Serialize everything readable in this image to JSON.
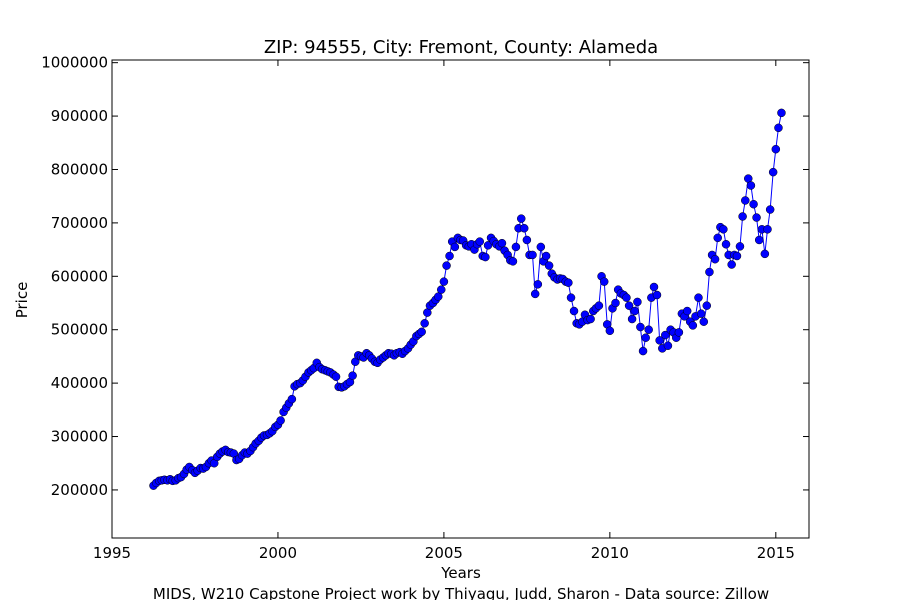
{
  "chart_data": {
    "type": "line",
    "title": "ZIP: 94555, City: Fremont, County: Alameda",
    "x_label": "Years",
    "y_label": "Price",
    "footer": "MIDS, W210 Capstone Project work by Thiyagu, Judd, Sharon  -  Data source: Zillow",
    "xlim": [
      1995,
      2016
    ],
    "ylim": [
      110000,
      1005000
    ],
    "xticks": [
      1995,
      2000,
      2005,
      2010,
      2015
    ],
    "yticks": [
      200000,
      300000,
      400000,
      500000,
      600000,
      700000,
      800000,
      900000,
      1000000
    ],
    "grid": false,
    "series": [
      {
        "color": "#0000ff",
        "x": [
          1996.25,
          1996.33,
          1996.42,
          1996.5,
          1996.58,
          1996.67,
          1996.75,
          1996.83,
          1996.92,
          1997,
          1997.08,
          1997.17,
          1997.25,
          1997.33,
          1997.42,
          1997.5,
          1997.58,
          1997.67,
          1997.75,
          1997.83,
          1997.92,
          1998,
          1998.08,
          1998.17,
          1998.25,
          1998.33,
          1998.42,
          1998.5,
          1998.58,
          1998.67,
          1998.75,
          1998.83,
          1998.92,
          1999,
          1999.08,
          1999.17,
          1999.25,
          1999.33,
          1999.42,
          1999.5,
          1999.58,
          1999.67,
          1999.75,
          1999.83,
          1999.92,
          2000,
          2000.08,
          2000.17,
          2000.25,
          2000.33,
          2000.42,
          2000.5,
          2000.58,
          2000.67,
          2000.75,
          2000.83,
          2000.92,
          2001,
          2001.08,
          2001.17,
          2001.25,
          2001.33,
          2001.42,
          2001.5,
          2001.58,
          2001.67,
          2001.75,
          2001.83,
          2001.92,
          2002,
          2002.08,
          2002.17,
          2002.25,
          2002.33,
          2002.42,
          2002.5,
          2002.58,
          2002.67,
          2002.75,
          2002.83,
          2002.92,
          2003,
          2003.08,
          2003.17,
          2003.25,
          2003.33,
          2003.42,
          2003.5,
          2003.58,
          2003.67,
          2003.75,
          2003.83,
          2003.92,
          2004,
          2004.08,
          2004.17,
          2004.25,
          2004.33,
          2004.42,
          2004.5,
          2004.58,
          2004.67,
          2004.75,
          2004.83,
          2004.92,
          2005,
          2005.08,
          2005.17,
          2005.25,
          2005.33,
          2005.42,
          2005.5,
          2005.58,
          2005.67,
          2005.75,
          2005.83,
          2005.92,
          2006,
          2006.08,
          2006.17,
          2006.25,
          2006.33,
          2006.42,
          2006.5,
          2006.58,
          2006.67,
          2006.75,
          2006.83,
          2006.92,
          2007,
          2007.08,
          2007.17,
          2007.25,
          2007.33,
          2007.42,
          2007.5,
          2007.58,
          2007.67,
          2007.75,
          2007.83,
          2007.92,
          2008,
          2008.08,
          2008.17,
          2008.25,
          2008.33,
          2008.42,
          2008.5,
          2008.58,
          2008.67,
          2008.75,
          2008.83,
          2008.92,
          2009,
          2009.08,
          2009.17,
          2009.25,
          2009.33,
          2009.42,
          2009.5,
          2009.58,
          2009.67,
          2009.75,
          2009.83,
          2009.92,
          2010,
          2010.08,
          2010.17,
          2010.25,
          2010.33,
          2010.42,
          2010.5,
          2010.58,
          2010.67,
          2010.75,
          2010.83,
          2010.92,
          2011,
          2011.08,
          2011.17,
          2011.25,
          2011.33,
          2011.42,
          2011.5,
          2011.58,
          2011.67,
          2011.75,
          2011.83,
          2011.92,
          2012,
          2012.08,
          2012.17,
          2012.25,
          2012.33,
          2012.42,
          2012.5,
          2012.58,
          2012.67,
          2012.75,
          2012.83,
          2012.92,
          2013,
          2013.08,
          2013.17,
          2013.25,
          2013.33,
          2013.42,
          2013.5,
          2013.58,
          2013.67,
          2013.75,
          2013.83,
          2013.92,
          2014,
          2014.08,
          2014.17,
          2014.25,
          2014.33,
          2014.42,
          2014.5,
          2014.58,
          2014.67,
          2014.75,
          2014.83,
          2014.92,
          2015,
          2015.08,
          2015.17
        ],
        "values": [
          208000,
          213000,
          217000,
          218000,
          219000,
          218000,
          220000,
          217000,
          218000,
          222000,
          224000,
          230000,
          238000,
          243000,
          237000,
          232000,
          236000,
          241000,
          240000,
          243000,
          250000,
          255000,
          250000,
          262000,
          268000,
          272000,
          275000,
          271000,
          270000,
          268000,
          256000,
          258000,
          265000,
          270000,
          268000,
          273000,
          280000,
          287000,
          292000,
          298000,
          302000,
          303000,
          306000,
          310000,
          318000,
          322000,
          330000,
          346000,
          354000,
          362000,
          370000,
          394000,
          398000,
          400000,
          405000,
          412000,
          420000,
          424000,
          428000,
          438000,
          430000,
          426000,
          424000,
          422000,
          420000,
          416000,
          412000,
          393000,
          392000,
          394000,
          398000,
          402000,
          414000,
          440000,
          452000,
          450000,
          448000,
          456000,
          452000,
          446000,
          440000,
          438000,
          444000,
          448000,
          452000,
          456000,
          455000,
          452000,
          456000,
          458000,
          455000,
          460000,
          465000,
          472000,
          478000,
          488000,
          492000,
          496000,
          512000,
          532000,
          545000,
          550000,
          556000,
          562000,
          575000,
          590000,
          620000,
          638000,
          665000,
          655000,
          672000,
          668000,
          667000,
          658000,
          656000,
          660000,
          650000,
          660000,
          665000,
          638000,
          636000,
          658000,
          672000,
          666000,
          660000,
          656000,
          662000,
          648000,
          640000,
          630000,
          628000,
          655000,
          690000,
          708000,
          690000,
          668000,
          640000,
          640000,
          567000,
          585000,
          655000,
          628000,
          638000,
          620000,
          605000,
          598000,
          594000,
          596000,
          595000,
          590000,
          588000,
          560000,
          535000,
          512000,
          510000,
          515000,
          528000,
          518000,
          520000,
          535000,
          540000,
          545000,
          600000,
          590000,
          510000,
          498000,
          540000,
          550000,
          575000,
          568000,
          565000,
          560000,
          545000,
          520000,
          535000,
          552000,
          505000,
          460000,
          485000,
          500000,
          560000,
          580000,
          565000,
          480000,
          465000,
          490000,
          470000,
          500000,
          495000,
          485000,
          495000,
          530000,
          525000,
          535000,
          515000,
          508000,
          525000,
          560000,
          530000,
          515000,
          545000,
          608000,
          640000,
          632000,
          672000,
          692000,
          688000,
          660000,
          640000,
          622000,
          640000,
          638000,
          656000,
          712000,
          742000,
          783000,
          770000,
          735000,
          710000,
          668000,
          688000,
          642000,
          688000,
          725000,
          795000,
          838000,
          878000,
          906000
        ]
      }
    ]
  }
}
